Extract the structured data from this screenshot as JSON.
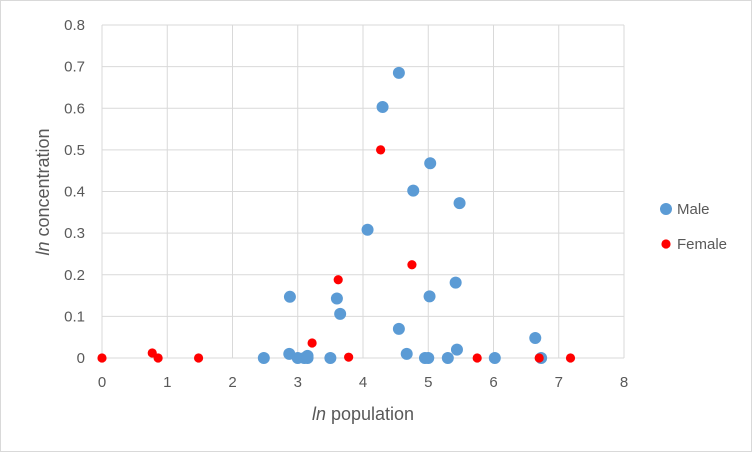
{
  "chart_data": {
    "type": "scatter",
    "title": "",
    "xlabel_prefix": "ln",
    "xlabel_rest": " population",
    "ylabel_prefix": "ln",
    "ylabel_rest": " concentration",
    "xlim": [
      0,
      8
    ],
    "ylim": [
      0,
      0.8
    ],
    "x_ticks": [
      0,
      1,
      2,
      3,
      4,
      5,
      6,
      7,
      8
    ],
    "y_ticks": [
      0,
      0.1,
      0.2,
      0.3,
      0.4,
      0.5,
      0.6,
      0.7,
      0.8
    ],
    "x_tick_labels": [
      "0",
      "1",
      "2",
      "3",
      "4",
      "5",
      "6",
      "7",
      "8"
    ],
    "y_tick_labels": [
      "0",
      "0.1",
      "0.2",
      "0.3",
      "0.4",
      "0.5",
      "0.6",
      "0.7",
      "0.8"
    ],
    "grid": true,
    "legend_position": "right",
    "series": [
      {
        "name": "Male",
        "color": "#5b9bd5",
        "points": [
          [
            2.48,
            0.0
          ],
          [
            2.87,
            0.01
          ],
          [
            2.88,
            0.147
          ],
          [
            3.0,
            0.0
          ],
          [
            3.1,
            0.0
          ],
          [
            3.15,
            0.005
          ],
          [
            3.15,
            0.0
          ],
          [
            3.5,
            0.0
          ],
          [
            3.6,
            0.143
          ],
          [
            3.65,
            0.106
          ],
          [
            4.07,
            0.308
          ],
          [
            4.3,
            0.603
          ],
          [
            4.55,
            0.685
          ],
          [
            4.55,
            0.07
          ],
          [
            4.67,
            0.01
          ],
          [
            4.77,
            0.402
          ],
          [
            4.95,
            0.0
          ],
          [
            5.0,
            0.0
          ],
          [
            5.02,
            0.148
          ],
          [
            5.03,
            0.468
          ],
          [
            5.3,
            0.0
          ],
          [
            5.42,
            0.181
          ],
          [
            5.44,
            0.02
          ],
          [
            5.48,
            0.372
          ],
          [
            6.02,
            0.0
          ],
          [
            6.64,
            0.048
          ],
          [
            6.73,
            0.0
          ]
        ]
      },
      {
        "name": "Female",
        "color": "#ff0000",
        "points": [
          [
            0.0,
            0.0
          ],
          [
            0.77,
            0.012
          ],
          [
            0.86,
            0.0
          ],
          [
            1.48,
            0.0
          ],
          [
            3.22,
            0.036
          ],
          [
            3.62,
            0.188
          ],
          [
            3.78,
            0.002
          ],
          [
            4.27,
            0.5
          ],
          [
            4.75,
            0.224
          ],
          [
            5.75,
            0.0
          ],
          [
            6.7,
            0.0
          ],
          [
            7.18,
            0.0
          ]
        ]
      }
    ]
  }
}
